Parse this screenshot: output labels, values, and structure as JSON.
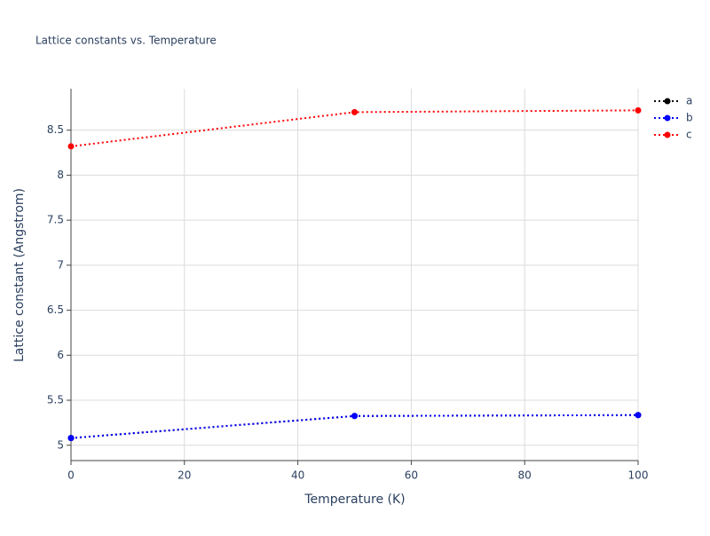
{
  "chart_data": {
    "type": "line",
    "title": "Lattice constants vs. Temperature",
    "x_label": "Temperature (K)",
    "y_label": "Lattice constant (Angstrom)",
    "x": [
      0,
      50,
      100
    ],
    "series": [
      {
        "name": "a",
        "color": "#000000",
        "values": [
          5.08,
          5.325,
          5.335
        ]
      },
      {
        "name": "b",
        "color": "#0000ff",
        "values": [
          5.08,
          5.325,
          5.335
        ]
      },
      {
        "name": "c",
        "color": "#ff0000",
        "values": [
          8.32,
          8.7,
          8.72
        ]
      }
    ],
    "xlim": [
      0,
      100
    ],
    "xticks": [
      0,
      20,
      40,
      60,
      80,
      100
    ],
    "ylim": [
      4.83,
      8.96
    ],
    "yticks": [
      5,
      5.5,
      6,
      6.5,
      7,
      7.5,
      8,
      8.5
    ],
    "grid": true,
    "legend": "right"
  }
}
